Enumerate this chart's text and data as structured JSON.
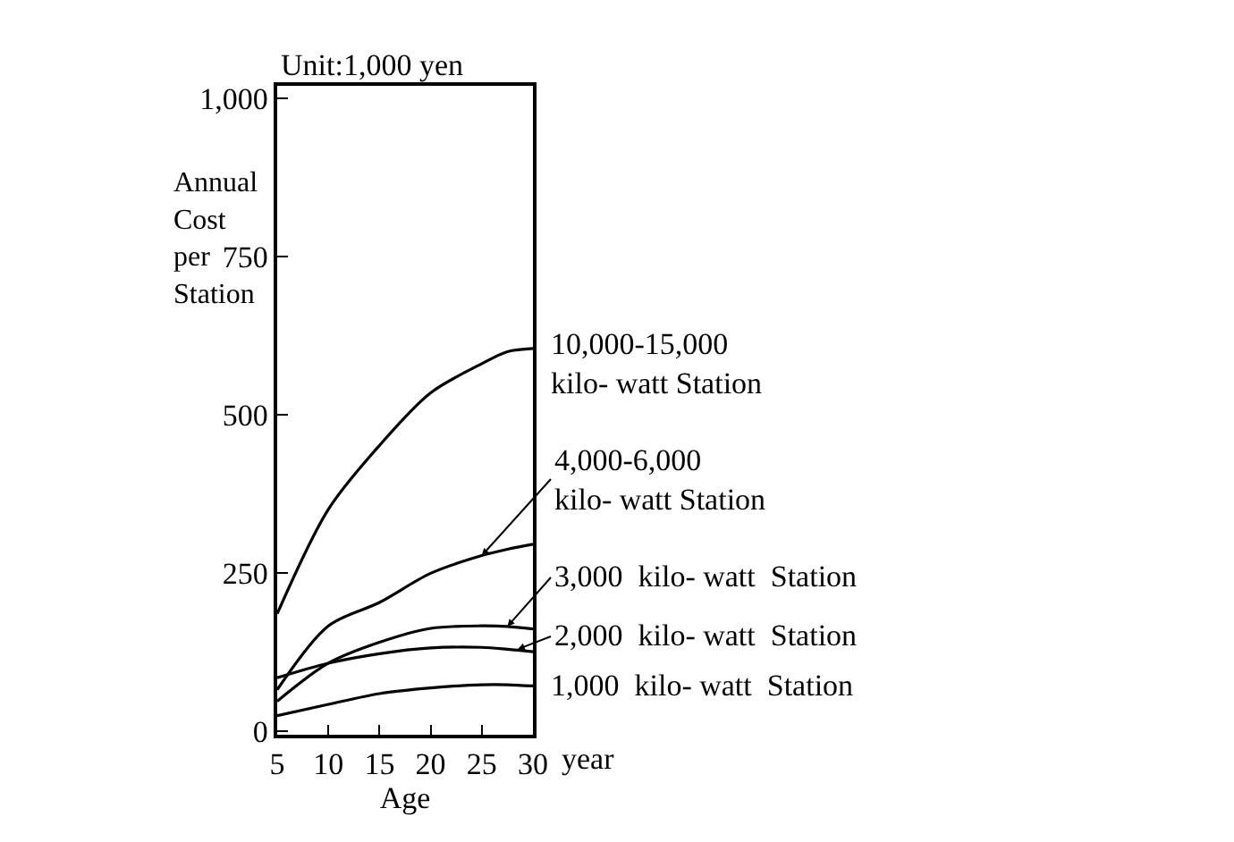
{
  "chart_data": {
    "type": "line",
    "xlabel": "Age",
    "ylabel": "Annual Cost per Station",
    "x": [
      5,
      10,
      15,
      20,
      25,
      27.5,
      30
    ],
    "series": [
      {
        "color": "#000000",
        "values": [
          186,
          351,
          452,
          535,
          581,
          600,
          605
        ]
      },
      {
        "color": "#000000",
        "values": [
          66,
          167,
          204,
          250,
          278,
          288,
          296
        ]
      },
      {
        "color": "#000000",
        "values": [
          48,
          108,
          141,
          163,
          167,
          166,
          162
        ]
      },
      {
        "color": "#000000",
        "values": [
          85,
          108,
          123,
          132,
          133,
          130,
          126
        ]
      },
      {
        "color": "#000000",
        "values": [
          25,
          43,
          60,
          69,
          74,
          74,
          72
        ]
      }
    ],
    "xlim": [
      5,
      30
    ],
    "xticks": [
      5,
      10,
      15,
      20,
      25,
      30
    ],
    "ylim": [
      -5,
      1020
    ],
    "yticks": [
      0,
      250,
      500,
      750,
      {
        "value": 1000,
        "label": "1,000"
      }
    ],
    "marker": "none",
    "line_style": "solid",
    "annotations": [
      "Unit:1,000 yen",
      "year",
      {
        "text": "10,000-15,000\nkilo- watt Station",
        "x": 30,
        "y": 605
      },
      {
        "text": "4,000-6,000\nkilo- watt Station",
        "x": 25,
        "y": 278
      },
      {
        "text": "3,000  kilo- watt  Station",
        "x": 27.5,
        "y": 166
      },
      {
        "text": "2,000  kilo- watt  Station",
        "x": 28.5,
        "y": 130
      },
      {
        "text": "1,000  kilo- watt  Station",
        "x": 30,
        "y": 72
      }
    ]
  }
}
